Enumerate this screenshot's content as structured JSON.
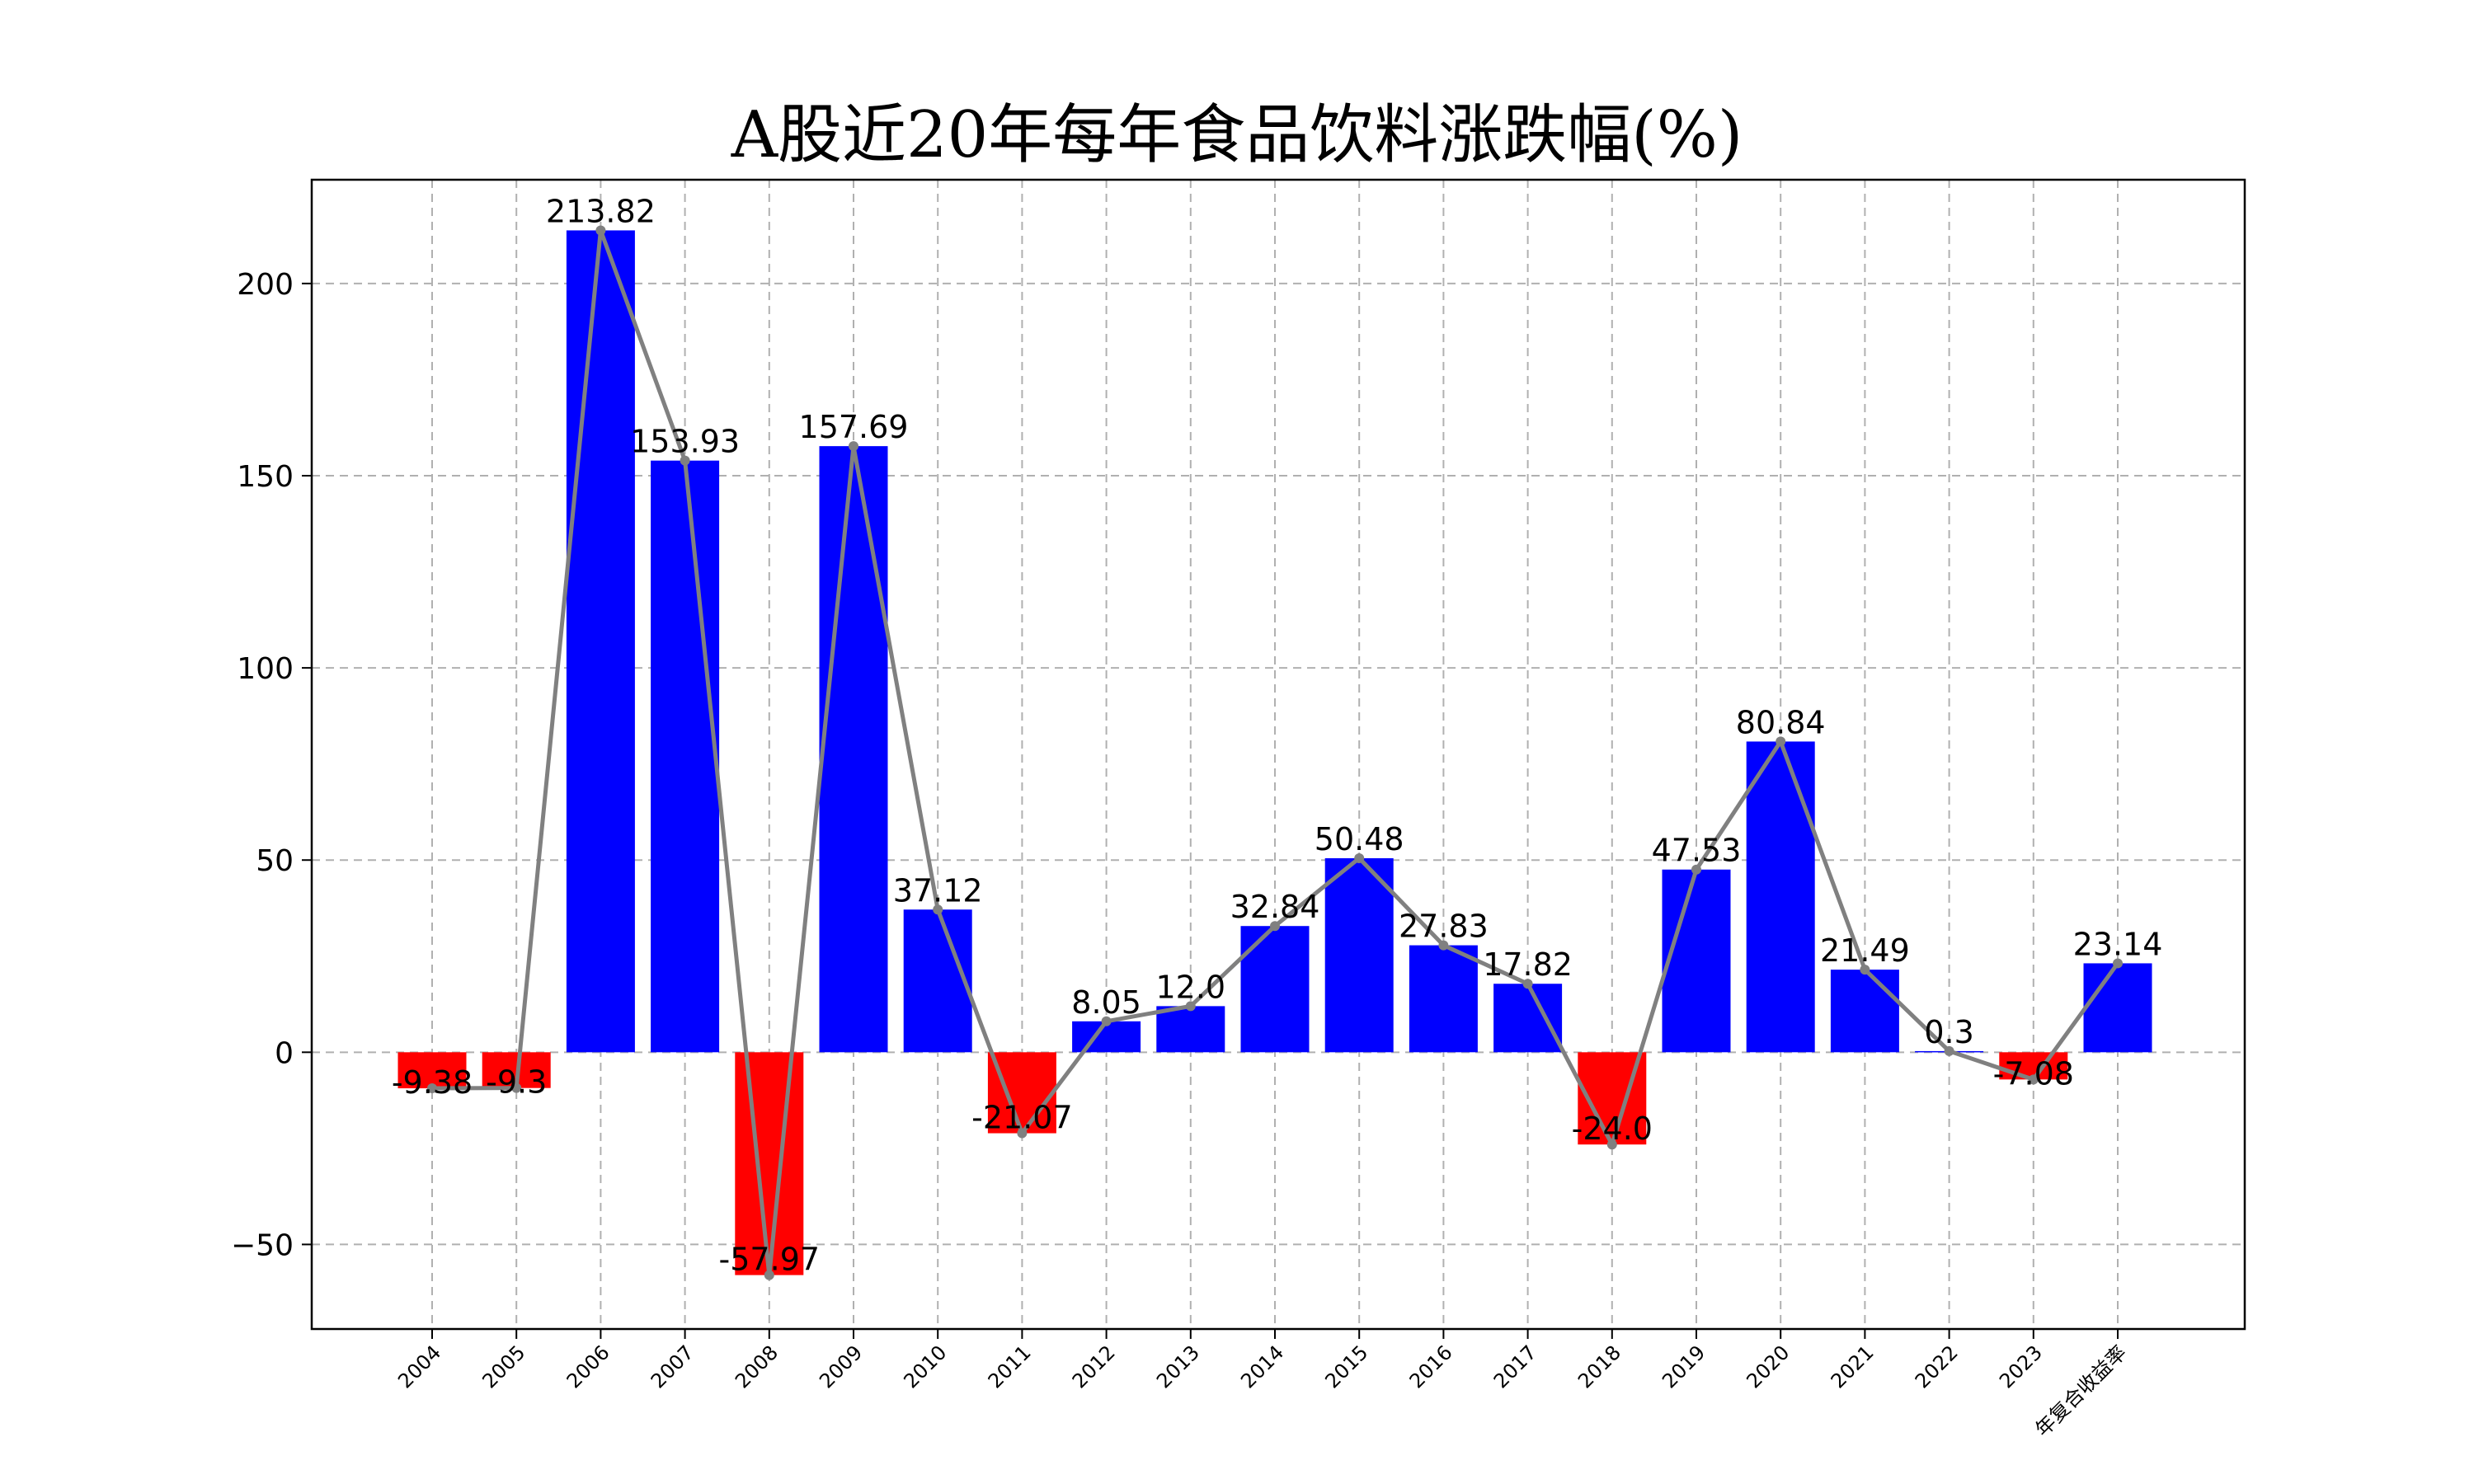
{
  "chart_data": {
    "type": "bar",
    "title": "A股近20年每年食品饮料涨跌幅(%)",
    "xlabel": "",
    "ylabel": "",
    "categories": [
      "2004",
      "2005",
      "2006",
      "2007",
      "2008",
      "2009",
      "2010",
      "2011",
      "2012",
      "2013",
      "2014",
      "2015",
      "2016",
      "2017",
      "2018",
      "2019",
      "2020",
      "2021",
      "2022",
      "2023",
      "年复合收益率"
    ],
    "values": [
      -9.38,
      -9.3,
      213.82,
      153.93,
      -57.97,
      157.69,
      37.12,
      -21.07,
      8.05,
      12.0,
      32.84,
      50.48,
      27.83,
      17.82,
      -24.0,
      47.53,
      80.84,
      21.49,
      0.3,
      -7.08,
      23.14
    ],
    "value_labels": [
      "-9.38",
      "-9.3",
      "213.82",
      "153.93",
      "-57.97",
      "157.69",
      "37.12",
      "-21.07",
      "8.05",
      "12.0",
      "32.84",
      "50.48",
      "27.83",
      "17.82",
      "-24.0",
      "47.53",
      "80.84",
      "21.49",
      "0.3",
      "-7.08",
      "23.14"
    ],
    "ylim": [
      -72,
      227
    ],
    "yticks": [
      -50,
      0,
      50,
      100,
      150,
      200
    ],
    "ytick_labels": [
      "−50",
      "0",
      "50",
      "100",
      "150",
      "200"
    ],
    "grid": true,
    "overlay_line": true,
    "colors": {
      "positive": "#0000ff",
      "negative": "#ff0000",
      "line": "#808080"
    }
  }
}
